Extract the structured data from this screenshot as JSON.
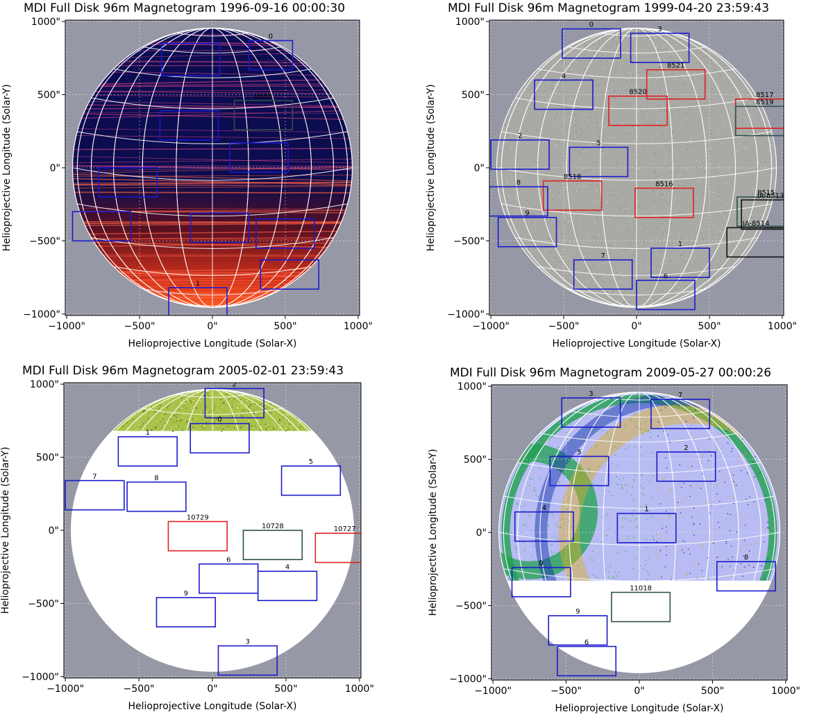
{
  "axis_xlabel": "Helioprojective Longitude (Solar-X)",
  "axis_ylabel": "Helioprojective Longitude (Solar-Y)",
  "xticks": [
    "−1000\"",
    "−500\"",
    "0\"",
    "500\"",
    "1000\""
  ],
  "yticks": [
    "1000\"",
    "500\"",
    "0\"",
    "−500\"",
    "−1000\""
  ],
  "colors": {
    "blue_box": "#1a1acc",
    "red_box": "#e02020",
    "dark_box": "#2f4f4f",
    "black_box": "#111111",
    "background": "#9698a6"
  },
  "panels": [
    {
      "title": "MDI Full Disk 96m Magnetogram 1996-09-16 00:00:30",
      "style": "red",
      "boxes": [
        {
          "label": "",
          "color": "blue",
          "x": -350,
          "y": 850,
          "w": 400,
          "h": 220
        },
        {
          "label": "0",
          "color": "blue",
          "x": 250,
          "y": 870,
          "w": 300,
          "h": 200
        },
        {
          "label": "8088",
          "color": "dark",
          "x": 150,
          "y": 460,
          "w": 400,
          "h": 200
        },
        {
          "label": "",
          "color": "blue",
          "x": -360,
          "y": 390,
          "w": 400,
          "h": 200
        },
        {
          "label": "",
          "color": "blue",
          "x": 120,
          "y": 170,
          "w": 400,
          "h": 200
        },
        {
          "label": "",
          "color": "blue",
          "x": -780,
          "y": 0,
          "w": 400,
          "h": 200
        },
        {
          "label": "",
          "color": "blue",
          "x": -960,
          "y": -300,
          "w": 400,
          "h": 200
        },
        {
          "label": "",
          "color": "blue",
          "x": -150,
          "y": -310,
          "w": 400,
          "h": 200
        },
        {
          "label": "",
          "color": "blue",
          "x": 300,
          "y": -350,
          "w": 400,
          "h": 200
        },
        {
          "label": "",
          "color": "blue",
          "x": 330,
          "y": -630,
          "w": 400,
          "h": 200
        },
        {
          "label": "1",
          "color": "blue",
          "x": -300,
          "y": -820,
          "w": 400,
          "h": 200
        }
      ]
    },
    {
      "title": "MDI Full Disk 96m Magnetogram 1999-04-20 23:59:43",
      "style": "gray",
      "boxes": [
        {
          "label": "0",
          "color": "blue",
          "x": -510,
          "y": 950,
          "w": 400,
          "h": 200
        },
        {
          "label": "3",
          "color": "blue",
          "x": -40,
          "y": 920,
          "w": 400,
          "h": 200
        },
        {
          "label": "8521",
          "color": "red",
          "x": 70,
          "y": 670,
          "w": 400,
          "h": 200
        },
        {
          "label": "4",
          "color": "blue",
          "x": -700,
          "y": 600,
          "w": 400,
          "h": 200
        },
        {
          "label": "8520",
          "color": "red",
          "x": -190,
          "y": 490,
          "w": 400,
          "h": 200
        },
        {
          "label": "8517",
          "color": "red",
          "x": 680,
          "y": 470,
          "w": 400,
          "h": 200
        },
        {
          "label": "8519",
          "color": "dark",
          "x": 680,
          "y": 420,
          "w": 400,
          "h": 200
        },
        {
          "label": "2",
          "color": "blue",
          "x": -1000,
          "y": 190,
          "w": 400,
          "h": 200
        },
        {
          "label": "5",
          "color": "blue",
          "x": -460,
          "y": 140,
          "w": 400,
          "h": 200
        },
        {
          "label": "8518",
          "color": "red",
          "x": -640,
          "y": -90,
          "w": 400,
          "h": 200
        },
        {
          "label": "8516",
          "color": "red",
          "x": -10,
          "y": -140,
          "w": 400,
          "h": 200
        },
        {
          "label": "8",
          "color": "blue",
          "x": -1010,
          "y": -130,
          "w": 400,
          "h": 200
        },
        {
          "label": "8515",
          "color": "dark",
          "x": 690,
          "y": -200,
          "w": 400,
          "h": 200
        },
        {
          "label": "IA-8513",
          "color": "black",
          "x": 720,
          "y": -220,
          "w": 400,
          "h": 200
        },
        {
          "label": "9",
          "color": "blue",
          "x": -950,
          "y": -340,
          "w": 400,
          "h": 200
        },
        {
          "label": "IA-8514",
          "color": "black",
          "x": 620,
          "y": -410,
          "w": 400,
          "h": 200
        },
        {
          "label": "1",
          "color": "blue",
          "x": 100,
          "y": -550,
          "w": 400,
          "h": 200
        },
        {
          "label": "7",
          "color": "blue",
          "x": -430,
          "y": -630,
          "w": 400,
          "h": 200
        },
        {
          "label": "6",
          "color": "blue",
          "x": 0,
          "y": -770,
          "w": 400,
          "h": 200
        }
      ]
    },
    {
      "title": "MDI Full Disk 96m Magnetogram 2005-02-01 23:59:43",
      "style": "green",
      "boxes": [
        {
          "label": "2",
          "color": "blue",
          "x": -50,
          "y": 970,
          "w": 400,
          "h": 200
        },
        {
          "label": "0",
          "color": "blue",
          "x": -150,
          "y": 730,
          "w": 400,
          "h": 200
        },
        {
          "label": "1",
          "color": "blue",
          "x": -640,
          "y": 640,
          "w": 400,
          "h": 200
        },
        {
          "label": "5",
          "color": "blue",
          "x": 470,
          "y": 440,
          "w": 400,
          "h": 200
        },
        {
          "label": "7",
          "color": "blue",
          "x": -1000,
          "y": 340,
          "w": 400,
          "h": 200
        },
        {
          "label": "8",
          "color": "blue",
          "x": -580,
          "y": 330,
          "w": 400,
          "h": 200
        },
        {
          "label": "10729",
          "color": "red",
          "x": -300,
          "y": 60,
          "w": 400,
          "h": 200
        },
        {
          "label": "10728",
          "color": "dark",
          "x": 210,
          "y": 0,
          "w": 400,
          "h": 200
        },
        {
          "label": "10727",
          "color": "red",
          "x": 700,
          "y": -20,
          "w": 400,
          "h": 200
        },
        {
          "label": "6",
          "color": "blue",
          "x": -90,
          "y": -230,
          "w": 400,
          "h": 200
        },
        {
          "label": "4",
          "color": "blue",
          "x": 310,
          "y": -280,
          "w": 400,
          "h": 200
        },
        {
          "label": "9",
          "color": "blue",
          "x": -380,
          "y": -460,
          "w": 400,
          "h": 200
        },
        {
          "label": "3",
          "color": "blue",
          "x": 40,
          "y": -790,
          "w": 400,
          "h": 200
        }
      ]
    },
    {
      "title": "MDI Full Disk 96m Magnetogram 2009-05-27 00:00:26",
      "style": "rainbow",
      "boxes": [
        {
          "label": "3",
          "color": "blue",
          "x": -530,
          "y": 920,
          "w": 400,
          "h": 200
        },
        {
          "label": "7",
          "color": "blue",
          "x": 80,
          "y": 910,
          "w": 400,
          "h": 200
        },
        {
          "label": "5",
          "color": "blue",
          "x": -610,
          "y": 520,
          "w": 400,
          "h": 200
        },
        {
          "label": "2",
          "color": "blue",
          "x": 120,
          "y": 550,
          "w": 400,
          "h": 200
        },
        {
          "label": "4",
          "color": "blue",
          "x": -850,
          "y": 140,
          "w": 400,
          "h": 200
        },
        {
          "label": "1",
          "color": "blue",
          "x": -150,
          "y": 130,
          "w": 400,
          "h": 200
        },
        {
          "label": "8",
          "color": "blue",
          "x": 530,
          "y": -200,
          "w": 400,
          "h": 200
        },
        {
          "label": "0",
          "color": "blue",
          "x": -870,
          "y": -240,
          "w": 400,
          "h": 200
        },
        {
          "label": "11018",
          "color": "dark",
          "x": -190,
          "y": -410,
          "w": 400,
          "h": 200
        },
        {
          "label": "9",
          "color": "blue",
          "x": -620,
          "y": -570,
          "w": 400,
          "h": 200
        },
        {
          "label": "6",
          "color": "blue",
          "x": -560,
          "y": -780,
          "w": 400,
          "h": 200
        }
      ]
    }
  ]
}
